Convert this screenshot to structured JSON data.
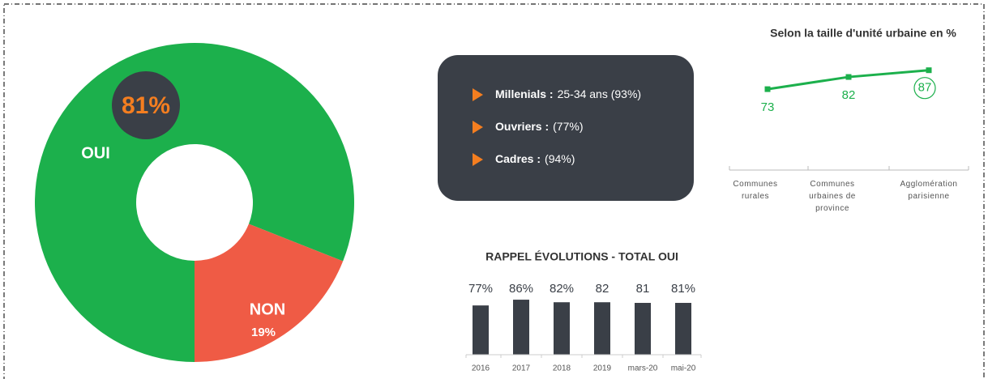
{
  "chart_data": [
    {
      "type": "donut",
      "categories": [
        "OUI",
        "NON"
      ],
      "values": [
        81,
        19
      ],
      "value_labels": [
        "81%",
        "19%"
      ],
      "colors": [
        "#1cb04c",
        "#ef5b45"
      ]
    },
    {
      "type": "line",
      "title": "Selon la taille d'unité urbaine en %",
      "categories": [
        "Communes rurales",
        "Communes urbaines de province",
        "Agglomération parisienne"
      ],
      "values": [
        73,
        82,
        87
      ],
      "color": "#1cb04c",
      "ylim": [
        0,
        100
      ]
    },
    {
      "type": "bar",
      "title": "RAPPEL ÉVOLUTIONS - TOTAL OUI",
      "categories": [
        "2016",
        "2017",
        "2018",
        "2019",
        "mars-20",
        "mai-20"
      ],
      "values": [
        77,
        86,
        82,
        82,
        81,
        81
      ],
      "value_labels": [
        "77%",
        "86%",
        "82%",
        "82",
        "81",
        "81%"
      ],
      "color": "#3a3f47",
      "ylim": [
        0,
        100
      ]
    }
  ],
  "callout": {
    "items": [
      {
        "label": "Millenials :",
        "text": "25-34 ans (93%)"
      },
      {
        "label": "Ouvriers :",
        "text": "(77%)"
      },
      {
        "label": "Cadres :",
        "text": "(94%)"
      }
    ]
  }
}
